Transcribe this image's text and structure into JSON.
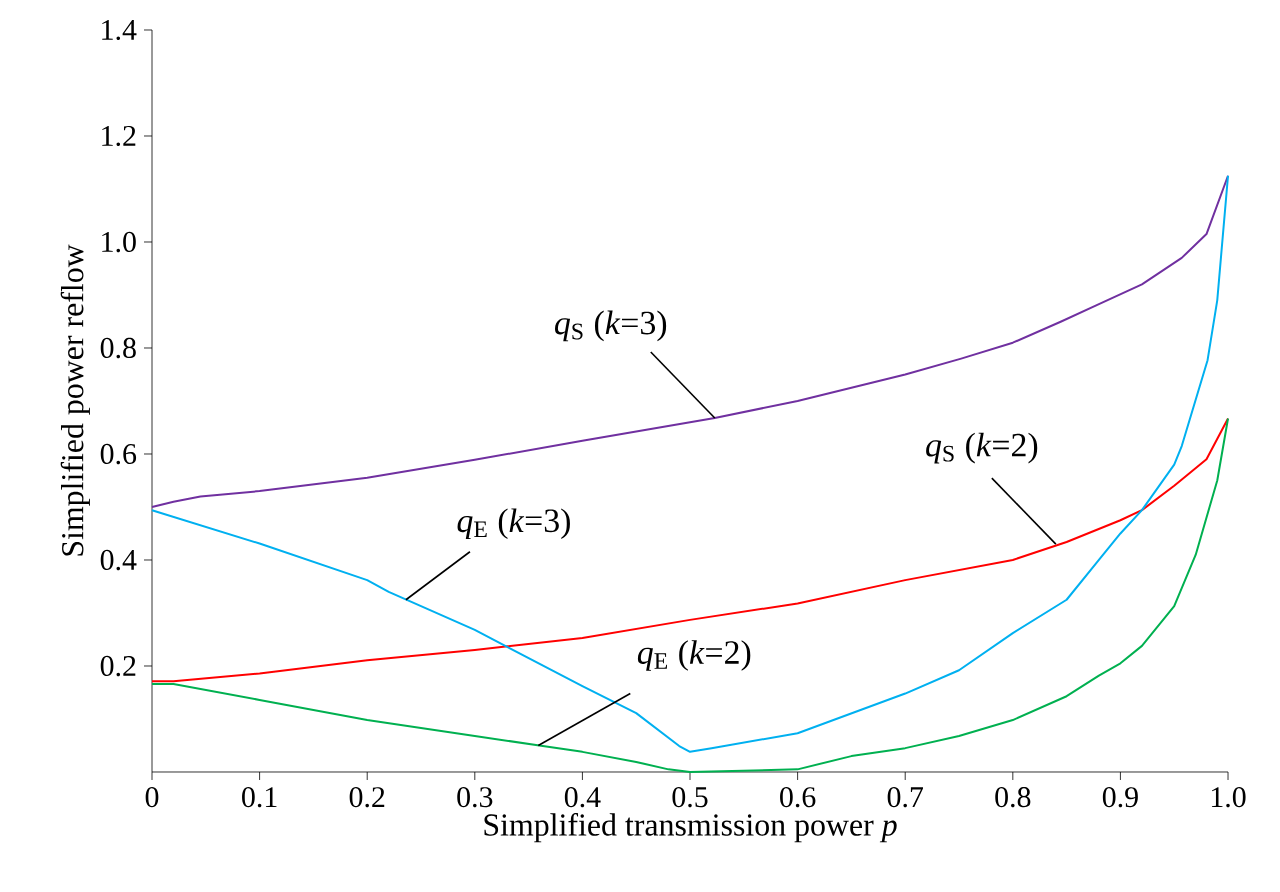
{
  "chart_data": {
    "type": "line",
    "xlabel": "Simplified  transmission power *p*",
    "ylabel": "Simplified power reflow",
    "xlim": [
      0,
      1
    ],
    "ylim": [
      0,
      1.4
    ],
    "xticks": [
      0,
      0.1,
      0.2,
      0.3,
      0.4,
      0.5,
      0.6,
      0.7,
      0.8,
      0.9,
      {
        "value": 1,
        "label": "1.0"
      }
    ],
    "yticks": [
      0.2,
      0.4,
      0.6,
      0.8,
      {
        "value": 1,
        "label": "1.0"
      },
      1.2,
      1.4
    ],
    "grid": false,
    "marker": "none",
    "line_style": "solid",
    "series": [
      {
        "color": "#7030a0",
        "x": [
          0,
          0.02,
          0.045,
          0.1,
          0.2,
          0.3,
          0.4,
          0.523,
          0.6,
          0.7,
          0.752,
          0.8,
          0.845,
          0.877,
          0.92,
          0.957,
          0.98,
          1.0
        ],
        "values": [
          0.5,
          0.51,
          0.52,
          0.53,
          0.555,
          0.589,
          0.625,
          0.668,
          0.7,
          0.75,
          0.78,
          0.81,
          0.85,
          0.88,
          0.92,
          0.97,
          1.015,
          1.125
        ]
      },
      {
        "color": "#ff0000",
        "x": [
          0,
          0.02,
          0.1,
          0.2,
          0.3,
          0.4,
          0.5,
          0.6,
          0.7,
          0.8,
          0.85,
          0.9,
          0.92,
          0.95,
          0.98,
          1.0
        ],
        "values": [
          0.171,
          0.171,
          0.186,
          0.211,
          0.23,
          0.253,
          0.287,
          0.318,
          0.362,
          0.4,
          0.434,
          0.475,
          0.494,
          0.54,
          0.59,
          0.667
        ]
      },
      {
        "color": "#00b0f0",
        "x": [
          0,
          0.1,
          0.2,
          0.22,
          0.3,
          0.4,
          0.45,
          0.49,
          0.5,
          0.52,
          0.6,
          0.7,
          0.75,
          0.8,
          0.85,
          0.88,
          0.9,
          0.92,
          0.95,
          0.957,
          0.981,
          0.99,
          1.0
        ],
        "values": [
          0.494,
          0.431,
          0.362,
          0.34,
          0.268,
          0.162,
          0.111,
          0.049,
          0.038,
          0.045,
          0.073,
          0.148,
          0.192,
          0.262,
          0.325,
          0.4,
          0.45,
          0.494,
          0.58,
          0.615,
          0.777,
          0.89,
          1.125
        ]
      },
      {
        "color": "#00b050",
        "x": [
          0,
          0.02,
          0.1,
          0.2,
          0.3,
          0.36,
          0.4,
          0.45,
          0.48,
          0.5,
          0.6,
          0.65,
          0.7,
          0.75,
          0.8,
          0.85,
          0.88,
          0.9,
          0.92,
          0.95,
          0.97,
          0.99,
          1.0
        ],
        "values": [
          0.166,
          0.166,
          0.136,
          0.098,
          0.068,
          0.05,
          0.038,
          0.019,
          0.005,
          0.0,
          0.005,
          0.03,
          0.045,
          0.068,
          0.098,
          0.143,
          0.182,
          0.205,
          0.238,
          0.313,
          0.41,
          0.55,
          0.667
        ]
      }
    ],
    "annotations": [
      {
        "text": "*q*$_{S}$ (*k*=3)",
        "x": 0.523,
        "y": 0.668
      },
      {
        "text": "*q*$_{S}$ (*k*=2)",
        "x": 0.84,
        "y": 0.43
      },
      {
        "text": "*q*$_{E}$ (*k*=3)",
        "x": 0.236,
        "y": 0.325
      },
      {
        "text": "*q*$_{E}$ (*k*=2)",
        "x": 0.359,
        "y": 0.05
      }
    ]
  }
}
